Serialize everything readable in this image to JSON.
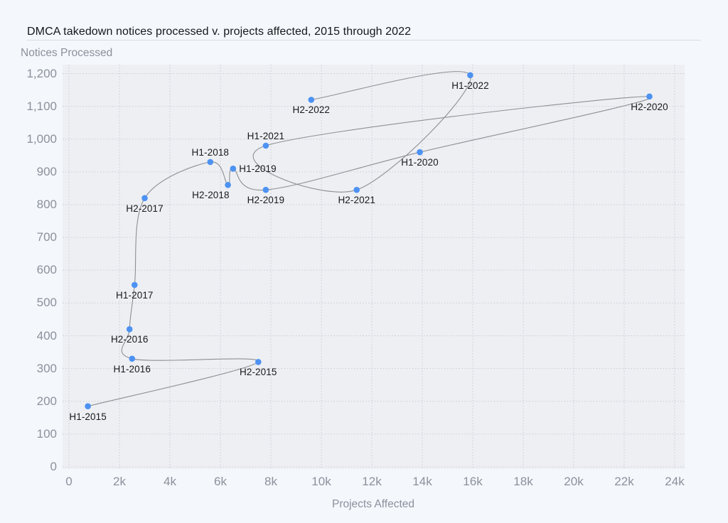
{
  "page": {
    "title": "DMCA takedown notices processed v. projects affected, 2015 through 2022"
  },
  "chart_data": {
    "type": "scatter",
    "connected": true,
    "curve": "smooth",
    "title": "DMCA takedown notices processed v. projects affected, 2015 through 2022",
    "xlabel": "Projects Affected",
    "ylabel": "Notices Processed",
    "xlim": [
      0,
      24000
    ],
    "ylim": [
      0,
      1200
    ],
    "x_tick_step": 2000,
    "y_tick_step": 100,
    "grid": "dashed",
    "legend": "none",
    "x_ticks": [
      "0",
      "2k",
      "4k",
      "6k",
      "8k",
      "10k",
      "12k",
      "14k",
      "16k",
      "18k",
      "20k",
      "22k",
      "24k"
    ],
    "y_ticks": [
      "0",
      "100",
      "200",
      "300",
      "400",
      "500",
      "600",
      "700",
      "800",
      "900",
      "1,000",
      "1,100",
      "1,200"
    ],
    "points": [
      {
        "label": "H1-2015",
        "x": 750,
        "y": 185,
        "label_pos": "below"
      },
      {
        "label": "H2-2015",
        "x": 7500,
        "y": 320,
        "label_pos": "below"
      },
      {
        "label": "H1-2016",
        "x": 2500,
        "y": 330,
        "label_pos": "below"
      },
      {
        "label": "H2-2016",
        "x": 2400,
        "y": 420,
        "label_pos": "below"
      },
      {
        "label": "H1-2017",
        "x": 2600,
        "y": 555,
        "label_pos": "below"
      },
      {
        "label": "H2-2017",
        "x": 3000,
        "y": 820,
        "label_pos": "below"
      },
      {
        "label": "H1-2018",
        "x": 5600,
        "y": 930,
        "label_pos": "above"
      },
      {
        "label": "H2-2018",
        "x": 6300,
        "y": 860,
        "label_pos": "below-left"
      },
      {
        "label": "H1-2019",
        "x": 6500,
        "y": 910,
        "label_pos": "right"
      },
      {
        "label": "H2-2019",
        "x": 7800,
        "y": 845,
        "label_pos": "below"
      },
      {
        "label": "H1-2020",
        "x": 13900,
        "y": 960,
        "label_pos": "below"
      },
      {
        "label": "H2-2020",
        "x": 23000,
        "y": 1130,
        "label_pos": "below"
      },
      {
        "label": "H1-2021",
        "x": 7800,
        "y": 980,
        "label_pos": "above"
      },
      {
        "label": "H2-2021",
        "x": 11400,
        "y": 845,
        "label_pos": "below"
      },
      {
        "label": "H1-2022",
        "x": 15900,
        "y": 1195,
        "label_pos": "below"
      },
      {
        "label": "H2-2022",
        "x": 9600,
        "y": 1120,
        "label_pos": "below"
      }
    ],
    "colors": {
      "point": "#4d92f2",
      "line": "#8d8f93",
      "grid": "#c7cbd2",
      "tick_text": "#8b919b",
      "point_label_text": "#17191c",
      "title_text": "#14171b",
      "plot_bg": "#edeff3",
      "page_bg": "#f4f7fc",
      "title_rule": "#d9dce2"
    }
  }
}
